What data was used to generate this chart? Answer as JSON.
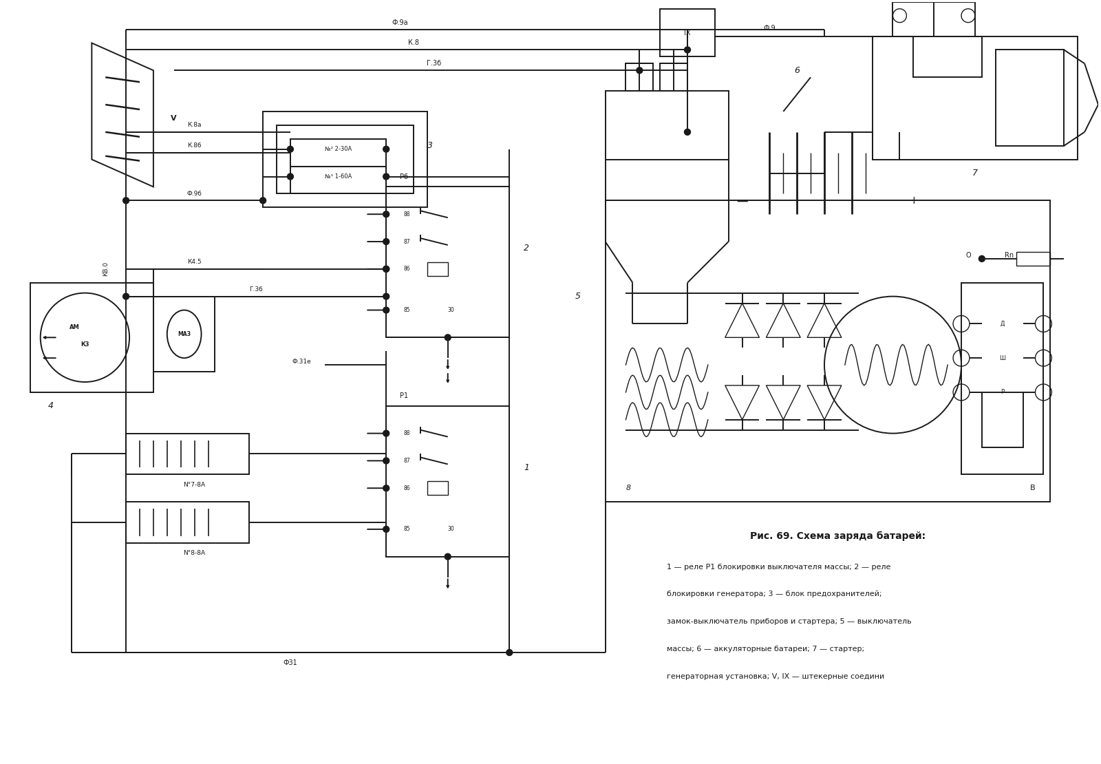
{
  "title": "Рис. 69. Схема заряда батарей:",
  "caption": [
    "1 — реле P1 блокировки выключателя массы; 2 — реле",
    "блокировки генератора; 3 — блок предохранителей;",
    "замок-выключатель приборов и стартера; 5 — выключатель",
    "массы; 6 — аккуляторные батареи; 7 — стартер;",
    "генераторная установка; V, IX — штекерные соедини"
  ],
  "bg_color": "#ffffff",
  "lc": "#1a1a1a",
  "lw": 1.4
}
